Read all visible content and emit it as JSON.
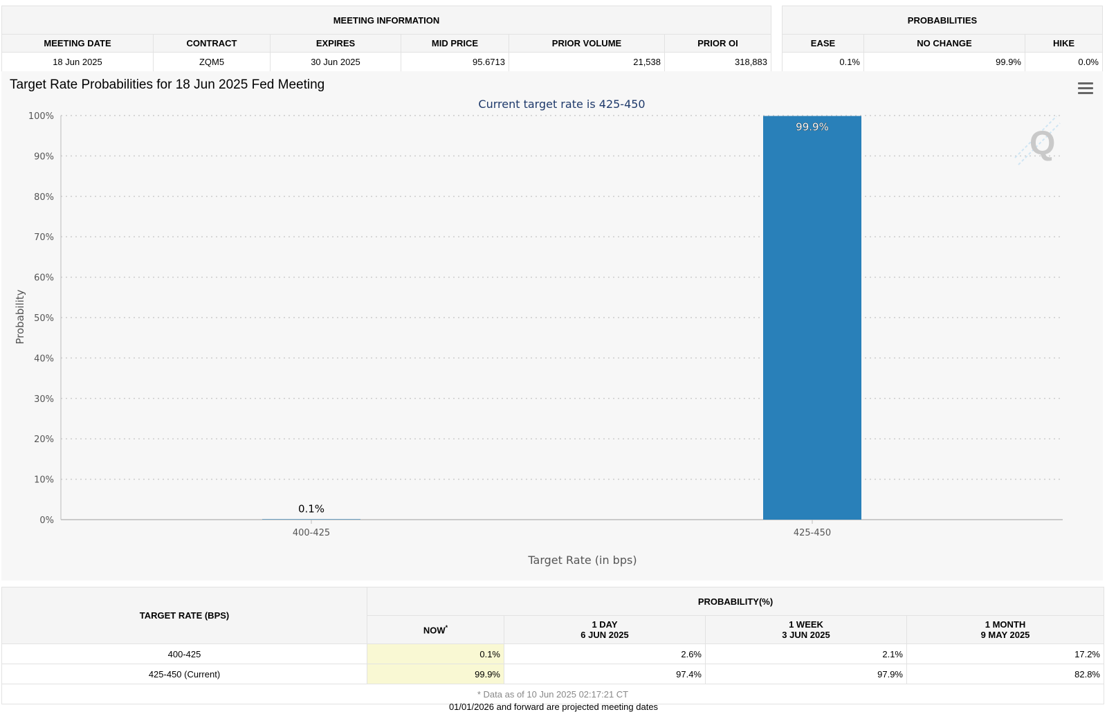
{
  "meeting_info": {
    "title": "MEETING INFORMATION",
    "columns": [
      "MEETING DATE",
      "CONTRACT",
      "EXPIRES",
      "MID PRICE",
      "PRIOR VOLUME",
      "PRIOR OI"
    ],
    "values": [
      "18 Jun 2025",
      "ZQM5",
      "30 Jun 2025",
      "95.6713",
      "21,538",
      "318,883"
    ]
  },
  "probabilities": {
    "title": "PROBABILITIES",
    "columns": [
      "EASE",
      "NO CHANGE",
      "HIKE"
    ],
    "values": [
      "0.1%",
      "99.9%",
      "0.0%"
    ]
  },
  "chart_data": {
    "type": "bar",
    "title": "Target Rate Probabilities for 18 Jun 2025 Fed Meeting",
    "subtitle": "Current target rate is 425-450",
    "xlabel": "Target Rate (in bps)",
    "ylabel": "Probability",
    "categories": [
      "400-425",
      "425-450"
    ],
    "values": [
      0.1,
      99.9
    ],
    "data_labels": [
      "0.1%",
      "99.9%"
    ],
    "ylim": [
      0,
      100
    ],
    "yticks": [
      0,
      10,
      20,
      30,
      40,
      50,
      60,
      70,
      80,
      90,
      100
    ],
    "ytick_labels": [
      "0%",
      "10%",
      "20%",
      "30%",
      "40%",
      "50%",
      "60%",
      "70%",
      "80%",
      "90%",
      "100%"
    ],
    "grid": true,
    "bar_color": "#2980b9"
  },
  "chart_menu": {
    "icon": "hamburger-menu-icon"
  },
  "watermark": {
    "icon": "q-logo-icon",
    "text": "Q"
  },
  "history": {
    "target_header": "TARGET RATE (BPS)",
    "prob_header": "PROBABILITY(%)",
    "columns": [
      {
        "label": "NOW",
        "marker": "*",
        "sub": ""
      },
      {
        "label": "1 DAY",
        "sub": "6 JUN 2025"
      },
      {
        "label": "1 WEEK",
        "sub": "3 JUN 2025"
      },
      {
        "label": "1 MONTH",
        "sub": "9 MAY 2025"
      }
    ],
    "rows": [
      {
        "rate": "400-425",
        "values": [
          "0.1%",
          "2.6%",
          "2.1%",
          "17.2%"
        ]
      },
      {
        "rate": "425-450 (Current)",
        "values": [
          "99.9%",
          "97.4%",
          "97.9%",
          "82.8%"
        ]
      }
    ],
    "footnote": "* Data as of 10 Jun 2025 02:17:21 CT",
    "highlight_color": "#f9f8d3"
  },
  "footer_note": "01/01/2026 and forward are projected meeting dates"
}
